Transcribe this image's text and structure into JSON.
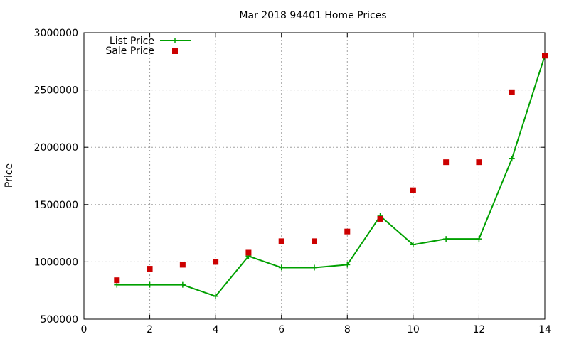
{
  "chart_data": {
    "type": "line",
    "title": "Mar 2018 94401 Home Prices",
    "xlabel": "",
    "ylabel": "Price",
    "xlim": [
      0,
      14
    ],
    "ylim": [
      500000,
      3000000
    ],
    "x_ticks": [
      0,
      2,
      4,
      6,
      8,
      10,
      12,
      14
    ],
    "y_ticks": [
      500000,
      1000000,
      1500000,
      2000000,
      2500000,
      3000000
    ],
    "grid": true,
    "legend_position": "top-left",
    "series": [
      {
        "name": "List Price",
        "style": "line-with-plus-markers",
        "color": "#00a000",
        "x": [
          1,
          2,
          3,
          4,
          5,
          6,
          7,
          8,
          9,
          10,
          11,
          12,
          13,
          14
        ],
        "values": [
          800000,
          800000,
          800000,
          700000,
          1050000,
          950000,
          950000,
          975000,
          1400000,
          1150000,
          1200000,
          1200000,
          1900000,
          2800000
        ]
      },
      {
        "name": "Sale Price",
        "style": "square-markers",
        "color": "#cc0000",
        "x": [
          1,
          2,
          3,
          4,
          5,
          6,
          7,
          8,
          9,
          10,
          11,
          12,
          13,
          14
        ],
        "values": [
          840000,
          940000,
          975000,
          1000000,
          1080000,
          1180000,
          1180000,
          1265000,
          1375000,
          1625000,
          1870000,
          1870000,
          2480000,
          2800000
        ]
      }
    ]
  }
}
